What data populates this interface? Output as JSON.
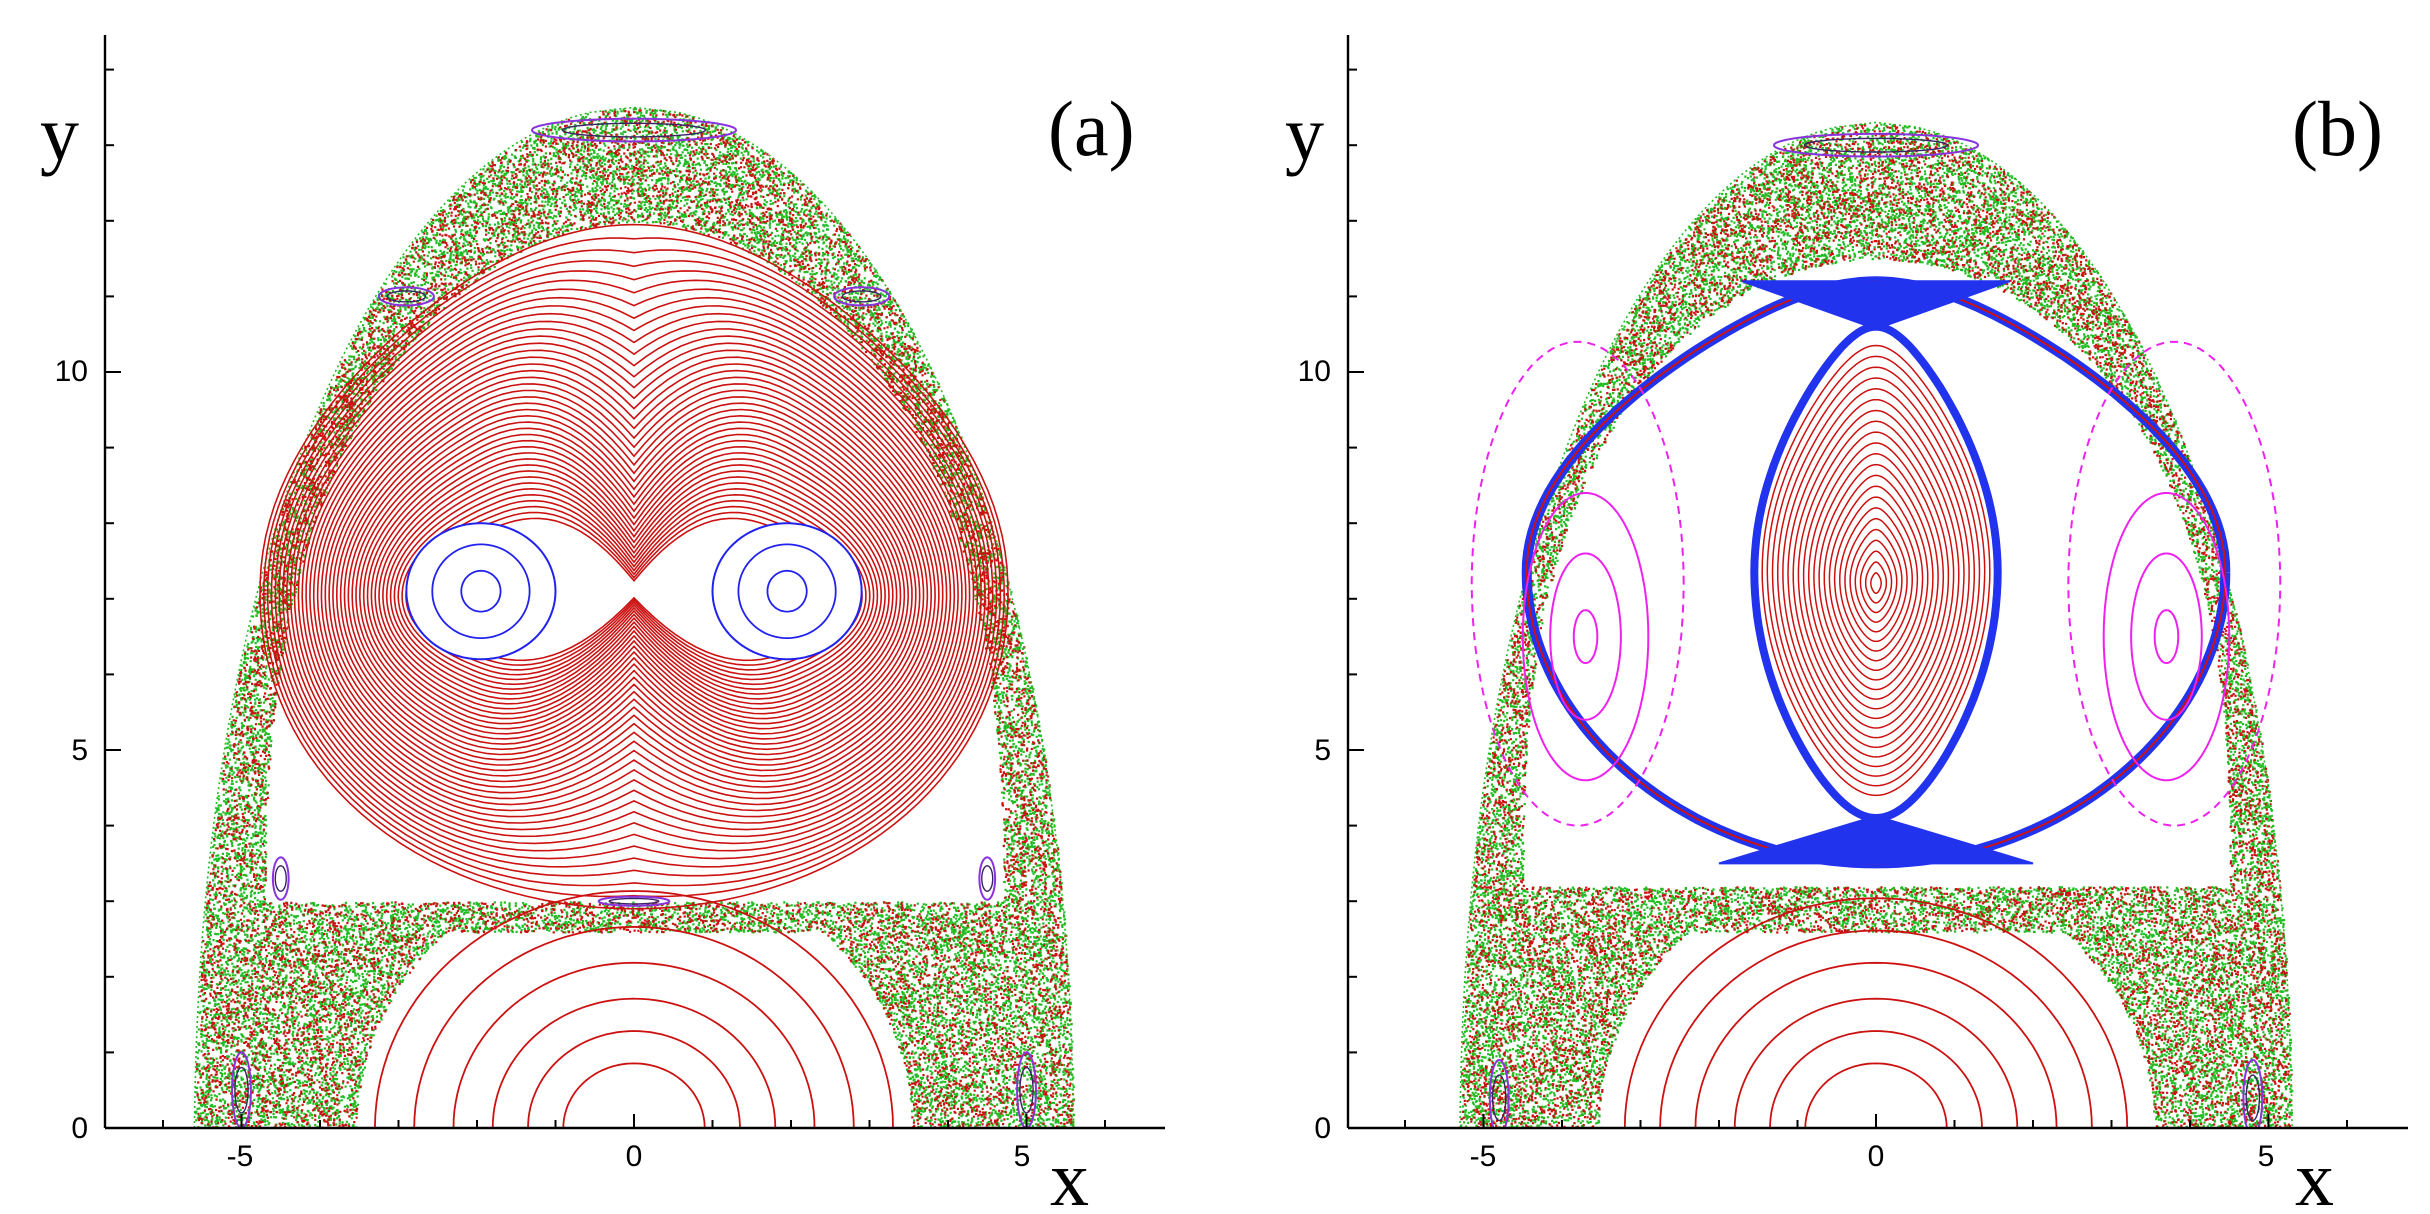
{
  "chart_data": [
    {
      "type": "scatter",
      "panel_label": "(a)",
      "xlabel": "x",
      "ylabel": "y",
      "xlim": [
        -7,
        7
      ],
      "ylim": [
        0,
        14.2
      ],
      "x_ticks": [
        -5,
        0,
        5
      ],
      "x_tick_labels": [
        "-5",
        "0",
        "5"
      ],
      "y_ticks": [
        0,
        5,
        10
      ],
      "y_tick_labels": [
        "0",
        "5",
        "10"
      ],
      "grid": false,
      "colors": {
        "chaos_green": "#22bb22",
        "chaos_red": "#cc1111",
        "orbit_red": "#cc1111",
        "orbit_blue": "#2222ee",
        "island_purple": "#8833dd"
      },
      "features": {
        "separatrix_boundary": {
          "top_y": 13.5,
          "bottom_half_width": 5.5,
          "max_half_width": 5.6
        },
        "chaotic_band_inner_top": 12.0,
        "central_red_invariant_curves": {
          "center": [
            0,
            7.1
          ],
          "count": 42
        },
        "blue_vortex_islands": [
          {
            "center": [
              -1.95,
              7.1
            ]
          },
          {
            "center": [
              1.95,
              7.1
            ]
          }
        ],
        "lower_red_arcs": {
          "center": [
            0,
            0
          ],
          "radii": [
            0.9,
            1.35,
            1.8,
            2.3,
            2.8,
            3.3
          ]
        },
        "purple_islands": [
          {
            "center": [
              0,
              13.2
            ]
          },
          {
            "center": [
              -2.9,
              11.0
            ]
          },
          {
            "center": [
              2.9,
              11.0
            ]
          },
          {
            "center": [
              -4.5,
              3.3
            ]
          },
          {
            "center": [
              4.5,
              3.3
            ]
          },
          {
            "center": [
              0,
              3.0
            ]
          },
          {
            "center": [
              -5.0,
              0.5
            ]
          },
          {
            "center": [
              5.0,
              0.5
            ]
          }
        ]
      }
    },
    {
      "type": "scatter",
      "panel_label": "(b)",
      "xlabel": "x",
      "ylabel": "y",
      "xlim": [
        -7,
        7
      ],
      "ylim": [
        0,
        14.2
      ],
      "x_ticks": [
        -5,
        0,
        5
      ],
      "x_tick_labels": [
        "-5",
        "0",
        "5"
      ],
      "y_ticks": [
        0,
        5,
        10
      ],
      "y_tick_labels": [
        "0",
        "5",
        "10"
      ],
      "grid": false,
      "colors": {
        "chaos_green": "#22bb22",
        "chaos_red": "#cc1111",
        "orbit_red": "#cc1111",
        "orbit_blue": "#2233ee",
        "island_magenta": "#ee22ee",
        "island_purple": "#8833dd"
      },
      "features": {
        "separatrix_boundary": {
          "top_y": 13.3,
          "bottom_half_width": 5.1,
          "max_half_width": 5.3
        },
        "central_red_invariant_curves": {
          "center": [
            0,
            7.2
          ],
          "count": 22
        },
        "blue_hourglass_separatrix": {
          "top_y": 11.2,
          "bottom_y": 3.5
        },
        "magenta_side_islands": [
          {
            "center": [
              -3.7,
              6.5
            ]
          },
          {
            "center": [
              3.7,
              6.5
            ]
          }
        ],
        "lower_red_arcs": {
          "center": [
            0,
            0
          ],
          "radii": [
            0.9,
            1.35,
            1.8,
            2.3,
            2.75,
            3.2
          ]
        },
        "purple_islands": [
          {
            "center": [
              0,
              13.0
            ]
          },
          {
            "center": [
              -4.8,
              0.4
            ]
          },
          {
            "center": [
              4.8,
              0.4
            ]
          }
        ]
      }
    }
  ]
}
